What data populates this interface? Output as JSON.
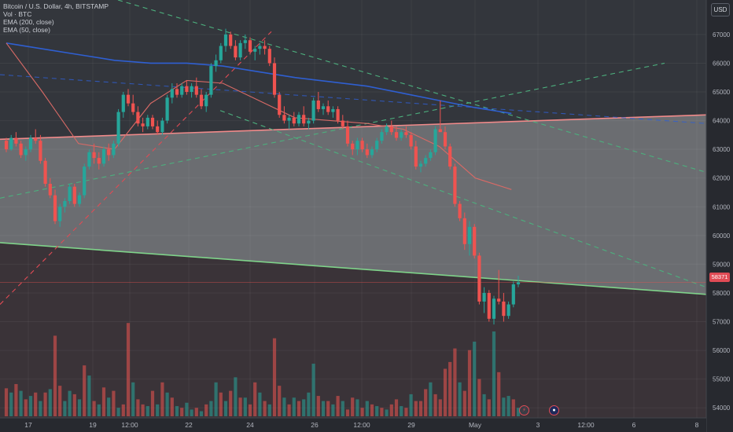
{
  "legend": {
    "symbol_line": "Bitcoin / U.S. Dollar, 4h, BITSTAMP",
    "volume_line": "Vol · BTC",
    "ema200_line": "EMA (200, close)",
    "ema50_line": "EMA (50, close)"
  },
  "currency_button": "USD",
  "last_price_label": "58371",
  "event_flags": {
    "dividend": "⚡",
    "earnings": "●"
  },
  "colors": {
    "background": "#27292f",
    "up": "#26a69a",
    "down": "#ef5350",
    "ema200": "#2f5fd1",
    "ema50": "#d86a66",
    "upper_channel": "#f08a8a",
    "lower_channel": "#7fd38a",
    "dashed_trend": "#4caf7d",
    "red_dashed": "#e04b55"
  },
  "chart_data": {
    "type": "candlestick",
    "title": "Bitcoin / U.S. Dollar, 4h, BITSTAMP",
    "y_ticks": [
      54000,
      55000,
      56000,
      57000,
      58000,
      59000,
      60000,
      61000,
      62000,
      63000,
      64000,
      65000,
      66000,
      67000
    ],
    "ylim": [
      53650,
      68200
    ],
    "x_tick_labels": [
      "17",
      "19",
      "12:00",
      "22",
      "24",
      "26",
      "12:00",
      "29",
      "May",
      "3",
      "12:00",
      "6",
      "8"
    ],
    "last_price": 58371,
    "candles": [
      [
        63300,
        63400,
        62900,
        63000
      ],
      [
        63000,
        63500,
        62950,
        63400
      ],
      [
        63400,
        63600,
        63100,
        63200
      ],
      [
        63200,
        63300,
        62700,
        62800
      ],
      [
        62800,
        63100,
        62600,
        63000
      ],
      [
        63000,
        63500,
        62900,
        63400
      ],
      [
        63400,
        63700,
        63200,
        63300
      ],
      [
        63300,
        63500,
        62500,
        62600
      ],
      [
        62600,
        62700,
        61700,
        61800
      ],
      [
        61800,
        62000,
        61300,
        61400
      ],
      [
        61400,
        61600,
        60400,
        60500
      ],
      [
        60500,
        61100,
        60300,
        61000
      ],
      [
        61000,
        61300,
        60800,
        61200
      ],
      [
        61200,
        61800,
        61100,
        61700
      ],
      [
        61700,
        61800,
        61000,
        61100
      ],
      [
        61100,
        61500,
        61000,
        61400
      ],
      [
        61400,
        62500,
        61300,
        62400
      ],
      [
        62400,
        63000,
        62300,
        62900
      ],
      [
        62900,
        63200,
        62500,
        62700
      ],
      [
        62700,
        62900,
        62300,
        62500
      ],
      [
        62500,
        63100,
        62400,
        63000
      ],
      [
        63000,
        63200,
        62600,
        62800
      ],
      [
        62800,
        63300,
        62700,
        63200
      ],
      [
        63200,
        64400,
        63100,
        64300
      ],
      [
        64300,
        65000,
        64100,
        64900
      ],
      [
        64900,
        65100,
        64500,
        64600
      ],
      [
        64600,
        64900,
        64200,
        64300
      ],
      [
        64300,
        64500,
        63800,
        63900
      ],
      [
        63900,
        64100,
        63600,
        63800
      ],
      [
        63800,
        64200,
        63700,
        64100
      ],
      [
        64100,
        64200,
        63700,
        63800
      ],
      [
        63800,
        64000,
        63500,
        63600
      ],
      [
        63600,
        64100,
        63500,
        64000
      ],
      [
        64000,
        64900,
        63900,
        64800
      ],
      [
        64800,
        65300,
        64600,
        65100
      ],
      [
        65100,
        65300,
        64800,
        64900
      ],
      [
        64900,
        65300,
        64800,
        65200
      ],
      [
        65200,
        65400,
        64900,
        65000
      ],
      [
        65000,
        65300,
        64800,
        65200
      ],
      [
        65200,
        65500,
        64800,
        64900
      ],
      [
        64900,
        65100,
        64400,
        64500
      ],
      [
        64500,
        65000,
        64300,
        64900
      ],
      [
        64900,
        66000,
        64800,
        65900
      ],
      [
        65900,
        66300,
        65700,
        66100
      ],
      [
        66100,
        66700,
        66000,
        66600
      ],
      [
        66600,
        67200,
        66400,
        67000
      ],
      [
        67000,
        67100,
        66500,
        66600
      ],
      [
        66600,
        66800,
        66100,
        66200
      ],
      [
        66200,
        66800,
        66100,
        66700
      ],
      [
        66700,
        67000,
        66500,
        66800
      ],
      [
        66800,
        66900,
        66300,
        66400
      ],
      [
        66400,
        66600,
        66100,
        66500
      ],
      [
        66500,
        66700,
        66300,
        66600
      ],
      [
        66600,
        66800,
        66300,
        66500
      ],
      [
        66500,
        66600,
        65900,
        66000
      ],
      [
        66000,
        66200,
        64800,
        64900
      ],
      [
        64900,
        65000,
        64100,
        64200
      ],
      [
        64200,
        64500,
        63900,
        64000
      ],
      [
        64000,
        64200,
        63700,
        64100
      ],
      [
        64100,
        64300,
        63800,
        63900
      ],
      [
        63900,
        64300,
        63800,
        64200
      ],
      [
        64200,
        64500,
        63800,
        63900
      ],
      [
        63900,
        64100,
        63700,
        64000
      ],
      [
        64000,
        64800,
        63900,
        64700
      ],
      [
        64700,
        65000,
        64300,
        64400
      ],
      [
        64400,
        64600,
        64200,
        64500
      ],
      [
        64500,
        64700,
        64200,
        64300
      ],
      [
        64300,
        64500,
        64100,
        64400
      ],
      [
        64400,
        64500,
        63900,
        64000
      ],
      [
        64000,
        64200,
        63700,
        63800
      ],
      [
        63800,
        64000,
        63100,
        63200
      ],
      [
        63200,
        63300,
        62800,
        63000
      ],
      [
        63000,
        63400,
        62800,
        63300
      ],
      [
        63300,
        63400,
        62900,
        63000
      ],
      [
        63000,
        63200,
        62700,
        62800
      ],
      [
        62800,
        63100,
        62700,
        63000
      ],
      [
        63000,
        63400,
        62900,
        63300
      ],
      [
        63300,
        63700,
        63200,
        63600
      ],
      [
        63600,
        63900,
        63500,
        63800
      ],
      [
        63800,
        64000,
        63500,
        63600
      ],
      [
        63600,
        63800,
        63300,
        63400
      ],
      [
        63400,
        63700,
        63300,
        63600
      ],
      [
        63600,
        63800,
        63400,
        63500
      ],
      [
        63500,
        63600,
        63000,
        63100
      ],
      [
        63100,
        63300,
        62300,
        62400
      ],
      [
        62400,
        62600,
        62200,
        62500
      ],
      [
        62500,
        62800,
        62400,
        62700
      ],
      [
        62700,
        63000,
        62600,
        62900
      ],
      [
        62900,
        63800,
        62800,
        63700
      ],
      [
        63700,
        64700,
        63600,
        63600
      ],
      [
        63600,
        63800,
        63000,
        63100
      ],
      [
        63100,
        63200,
        62300,
        62400
      ],
      [
        62400,
        62500,
        61000,
        61100
      ],
      [
        61100,
        61200,
        60500,
        60600
      ],
      [
        60600,
        60800,
        59500,
        59700
      ],
      [
        59700,
        60500,
        59300,
        60300
      ],
      [
        60300,
        60400,
        59200,
        59300
      ],
      [
        59300,
        59400,
        57600,
        57700
      ],
      [
        57700,
        58200,
        57300,
        58000
      ],
      [
        58000,
        58100,
        57000,
        57100
      ],
      [
        57100,
        57900,
        56900,
        57800
      ],
      [
        57800,
        58800,
        57600,
        57700
      ],
      [
        57700,
        58000,
        57000,
        57200
      ],
      [
        57200,
        57700,
        57100,
        57600
      ],
      [
        57600,
        58400,
        57500,
        58300
      ],
      [
        58300,
        58600,
        58200,
        58371
      ]
    ],
    "volume_bars": [
      [
        33,
        0
      ],
      [
        28,
        1
      ],
      [
        38,
        0
      ],
      [
        30,
        1
      ],
      [
        20,
        0
      ],
      [
        24,
        1
      ],
      [
        28,
        0
      ],
      [
        18,
        1
      ],
      [
        28,
        0
      ],
      [
        32,
        1
      ],
      [
        95,
        0
      ],
      [
        36,
        0
      ],
      [
        18,
        1
      ],
      [
        30,
        1
      ],
      [
        26,
        0
      ],
      [
        20,
        1
      ],
      [
        60,
        0
      ],
      [
        48,
        1
      ],
      [
        18,
        0
      ],
      [
        14,
        1
      ],
      [
        34,
        0
      ],
      [
        22,
        1
      ],
      [
        30,
        0
      ],
      [
        10,
        1
      ],
      [
        14,
        0
      ],
      [
        110,
        0
      ],
      [
        40,
        1
      ],
      [
        20,
        0
      ],
      [
        14,
        0
      ],
      [
        12,
        1
      ],
      [
        30,
        0
      ],
      [
        14,
        1
      ],
      [
        40,
        0
      ],
      [
        28,
        1
      ],
      [
        22,
        0
      ],
      [
        12,
        1
      ],
      [
        10,
        0
      ],
      [
        16,
        1
      ],
      [
        8,
        1
      ],
      [
        10,
        0
      ],
      [
        6,
        1
      ],
      [
        14,
        0
      ],
      [
        18,
        1
      ],
      [
        40,
        1
      ],
      [
        28,
        0
      ],
      [
        18,
        1
      ],
      [
        30,
        0
      ],
      [
        46,
        1
      ],
      [
        22,
        0
      ],
      [
        22,
        1
      ],
      [
        14,
        0
      ],
      [
        40,
        0
      ],
      [
        28,
        1
      ],
      [
        18,
        0
      ],
      [
        14,
        1
      ],
      [
        92,
        0
      ],
      [
        36,
        0
      ],
      [
        22,
        1
      ],
      [
        14,
        0
      ],
      [
        22,
        1
      ],
      [
        18,
        0
      ],
      [
        20,
        1
      ],
      [
        28,
        1
      ],
      [
        62,
        1
      ],
      [
        24,
        0
      ],
      [
        18,
        1
      ],
      [
        18,
        0
      ],
      [
        14,
        1
      ],
      [
        24,
        0
      ],
      [
        18,
        1
      ],
      [
        8,
        0
      ],
      [
        22,
        0
      ],
      [
        20,
        1
      ],
      [
        10,
        0
      ],
      [
        18,
        1
      ],
      [
        14,
        0
      ],
      [
        12,
        1
      ],
      [
        10,
        0
      ],
      [
        8,
        1
      ],
      [
        14,
        0
      ],
      [
        20,
        0
      ],
      [
        12,
        1
      ],
      [
        10,
        0
      ],
      [
        26,
        1
      ],
      [
        18,
        0
      ],
      [
        18,
        0
      ],
      [
        32,
        0
      ],
      [
        40,
        1
      ],
      [
        26,
        0
      ],
      [
        20,
        0
      ],
      [
        56,
        0
      ],
      [
        64,
        0
      ],
      [
        80,
        0
      ],
      [
        40,
        1
      ],
      [
        30,
        0
      ],
      [
        78,
        0
      ],
      [
        88,
        1
      ],
      [
        44,
        0
      ],
      [
        26,
        1
      ],
      [
        20,
        0
      ],
      [
        100,
        1
      ],
      [
        52,
        0
      ],
      [
        22,
        1
      ],
      [
        24,
        1
      ],
      [
        20,
        0
      ],
      [
        10,
        1
      ]
    ],
    "ema200": [
      [
        0,
        66700
      ],
      [
        20,
        66500
      ],
      [
        40,
        66300
      ],
      [
        60,
        66100
      ],
      [
        80,
        66000
      ],
      [
        100,
        66000
      ],
      [
        120,
        65900
      ],
      [
        140,
        65700
      ],
      [
        160,
        65500
      ],
      [
        180,
        65350
      ],
      [
        200,
        65200
      ],
      [
        220,
        64950
      ],
      [
        240,
        64700
      ],
      [
        260,
        64450
      ],
      [
        280,
        64250
      ]
    ],
    "ema50": [
      [
        0,
        66700
      ],
      [
        20,
        65000
      ],
      [
        40,
        63200
      ],
      [
        60,
        63000
      ],
      [
        80,
        64600
      ],
      [
        100,
        65400
      ],
      [
        120,
        65300
      ],
      [
        140,
        64700
      ],
      [
        160,
        64100
      ],
      [
        180,
        64000
      ],
      [
        200,
        63900
      ],
      [
        220,
        63700
      ],
      [
        240,
        63100
      ],
      [
        260,
        62000
      ],
      [
        280,
        61600
      ]
    ]
  }
}
